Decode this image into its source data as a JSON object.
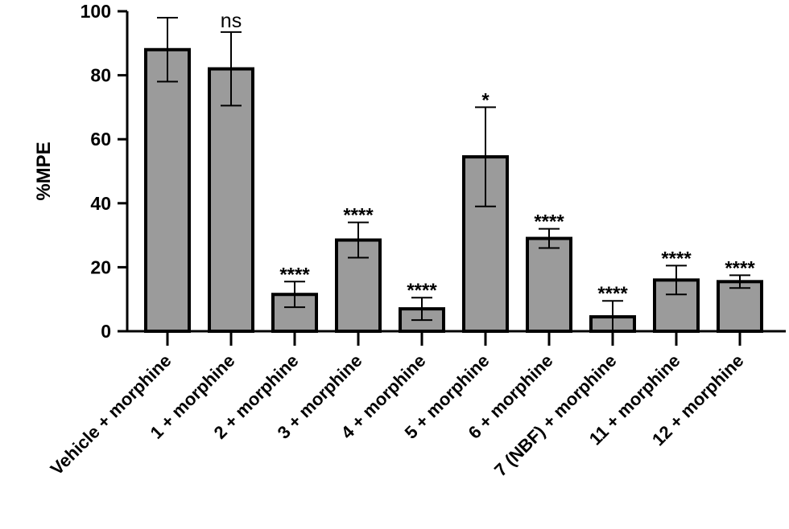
{
  "chart_data": {
    "type": "bar",
    "ylabel": "%MPE",
    "xlabel": "",
    "ylim": [
      0,
      100
    ],
    "yticks": [
      0,
      20,
      40,
      60,
      80,
      100
    ],
    "categories": [
      "Vehicle + morphine",
      "1 + morphine",
      "2 + morphine",
      "3 + morphine",
      "4 + morphine",
      "5 + morphine",
      "6 + morphine",
      "7 (NBF) + morphine",
      "11 + morphine",
      "12 + morphine"
    ],
    "values": [
      88,
      82,
      11.5,
      28.5,
      7,
      54.5,
      29,
      4.5,
      16,
      15.5
    ],
    "error": [
      10,
      11.5,
      4,
      5.5,
      3.5,
      15.5,
      3,
      5,
      4.5,
      2
    ],
    "significance": [
      "",
      "ns",
      "****",
      "****",
      "****",
      "*",
      "****",
      "****",
      "****",
      "****"
    ],
    "bar_color": "#9b9b9b",
    "edge_color": "#000000",
    "grid": false,
    "legend": "none"
  }
}
